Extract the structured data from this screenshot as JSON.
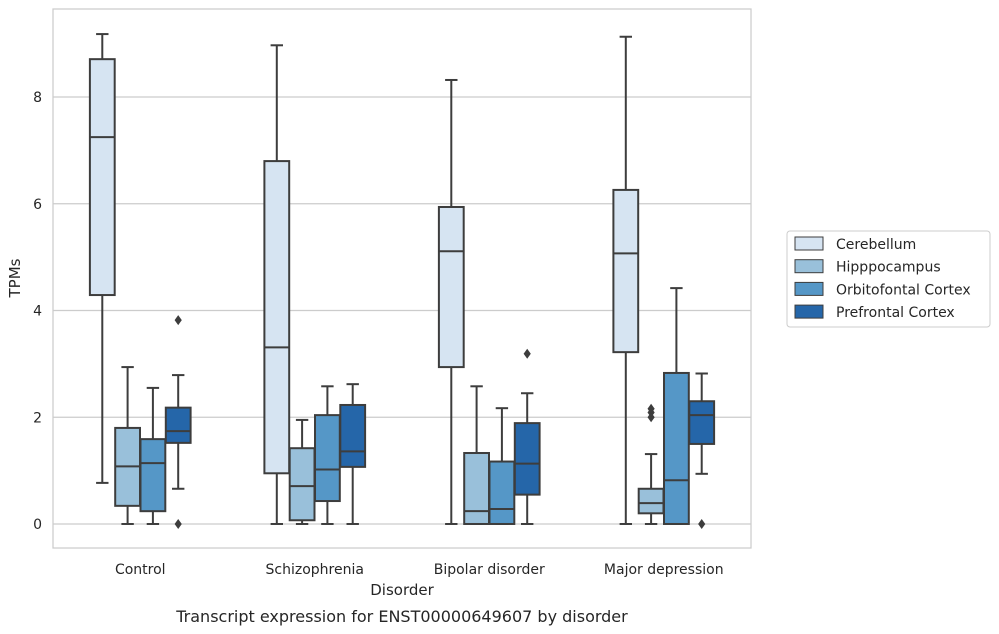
{
  "caption": "Transcript expression for ENST00000649607 by disorder",
  "chart_data": {
    "type": "box",
    "xlabel": "Disorder",
    "ylabel": "TPMs",
    "ylim": [
      -0.45,
      9.65
    ],
    "yticks": [
      0,
      2,
      4,
      6,
      8
    ],
    "grid": "horizontal",
    "legend_placement": "right",
    "categories": [
      "Control",
      "Schizophrenia",
      "Bipolar disorder",
      "Major depression"
    ],
    "series": [
      {
        "name": "Cerebellum",
        "color": "#d6e4f2",
        "boxes": [
          {
            "whisker_low": 0.77,
            "q1": 4.29,
            "median": 7.25,
            "q3": 8.71,
            "whisker_high": 9.18,
            "outliers": []
          },
          {
            "whisker_low": 0.0,
            "q1": 0.95,
            "median": 3.31,
            "q3": 6.8,
            "whisker_high": 8.97,
            "outliers": []
          },
          {
            "whisker_low": 0.0,
            "q1": 2.94,
            "median": 5.11,
            "q3": 5.94,
            "whisker_high": 8.32,
            "outliers": []
          },
          {
            "whisker_low": 0.0,
            "q1": 3.22,
            "median": 5.07,
            "q3": 6.26,
            "whisker_high": 9.13,
            "outliers": []
          }
        ]
      },
      {
        "name": "Hipppocampus",
        "color": "#99c0da",
        "boxes": [
          {
            "whisker_low": 0.0,
            "q1": 0.34,
            "median": 1.08,
            "q3": 1.8,
            "whisker_high": 2.94,
            "outliers": []
          },
          {
            "whisker_low": 0.0,
            "q1": 0.07,
            "median": 0.71,
            "q3": 1.42,
            "whisker_high": 1.95,
            "outliers": []
          },
          {
            "whisker_low": 0.0,
            "q1": 0.0,
            "median": 0.24,
            "q3": 1.33,
            "whisker_high": 2.58,
            "outliers": []
          },
          {
            "whisker_low": 0.0,
            "q1": 0.2,
            "median": 0.39,
            "q3": 0.66,
            "whisker_high": 1.31,
            "outliers": [
              2.0,
              2.09,
              2.16
            ]
          }
        ]
      },
      {
        "name": "Orbitofontal Cortex",
        "color": "#5597c7",
        "boxes": [
          {
            "whisker_low": 0.0,
            "q1": 0.24,
            "median": 1.14,
            "q3": 1.59,
            "whisker_high": 2.55,
            "outliers": []
          },
          {
            "whisker_low": 0.0,
            "q1": 0.43,
            "median": 1.02,
            "q3": 2.04,
            "whisker_high": 2.58,
            "outliers": []
          },
          {
            "whisker_low": 0.0,
            "q1": 0.0,
            "median": 0.28,
            "q3": 1.17,
            "whisker_high": 2.17,
            "outliers": []
          },
          {
            "whisker_low": 0.0,
            "q1": 0.0,
            "median": 0.82,
            "q3": 2.83,
            "whisker_high": 4.42,
            "outliers": []
          }
        ]
      },
      {
        "name": "Prefrontal Cortex",
        "color": "#2566a9",
        "boxes": [
          {
            "whisker_low": 0.66,
            "q1": 1.52,
            "median": 1.74,
            "q3": 2.18,
            "whisker_high": 2.79,
            "outliers": [
              0.0,
              3.82
            ]
          },
          {
            "whisker_low": 0.0,
            "q1": 1.07,
            "median": 1.36,
            "q3": 2.23,
            "whisker_high": 2.62,
            "outliers": []
          },
          {
            "whisker_low": 0.0,
            "q1": 0.55,
            "median": 1.13,
            "q3": 1.89,
            "whisker_high": 2.45,
            "outliers": [
              3.19
            ]
          },
          {
            "whisker_low": 0.94,
            "q1": 1.5,
            "median": 2.04,
            "q3": 2.3,
            "whisker_high": 2.82,
            "outliers": [
              0.0
            ]
          }
        ]
      }
    ]
  }
}
